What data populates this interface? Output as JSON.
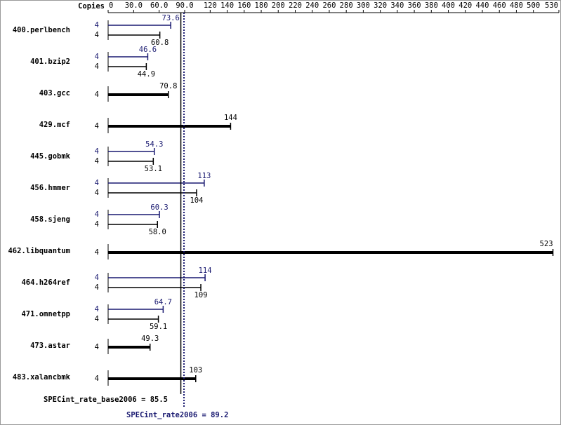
{
  "chart_data": {
    "type": "bar",
    "orientation": "horizontal",
    "copies_label": "Copies",
    "categories": [
      "400.perlbench",
      "401.bzip2",
      "403.gcc",
      "429.mcf",
      "445.gobmk",
      "456.hmmer",
      "458.sjeng",
      "462.libquantum",
      "464.h264ref",
      "471.omnetpp",
      "473.astar",
      "483.xalancbmk"
    ],
    "series": [
      {
        "color": "#191970",
        "values": [
          73.6,
          46.6,
          null,
          null,
          54.3,
          113,
          60.3,
          null,
          114,
          64.7,
          null,
          null
        ],
        "value_labels": [
          "73.6",
          "46.6",
          null,
          null,
          "54.3",
          "113",
          "60.3",
          null,
          "114",
          "64.7",
          null,
          null
        ],
        "copies": [
          4,
          4,
          null,
          null,
          4,
          4,
          4,
          null,
          4,
          4,
          null,
          null
        ]
      },
      {
        "color": "#000000",
        "values": [
          60.8,
          44.9,
          70.8,
          144,
          53.1,
          104,
          58.0,
          523,
          109,
          59.1,
          49.3,
          103
        ],
        "value_labels": [
          "60.8",
          "44.9",
          "70.8",
          "144",
          "53.1",
          "104",
          "58.0",
          "523",
          "109",
          "59.1",
          "49.3",
          "103"
        ],
        "copies": [
          4,
          4,
          4,
          4,
          4,
          4,
          4,
          4,
          4,
          4,
          4,
          4
        ]
      }
    ],
    "xlim": [
      0,
      530
    ],
    "xticks": [
      0,
      {
        "value": 30,
        "label": "30.0"
      },
      {
        "value": 60,
        "label": "60.0"
      },
      {
        "value": 90,
        "label": "90.0"
      },
      120,
      140,
      160,
      180,
      200,
      220,
      240,
      260,
      280,
      300,
      320,
      340,
      360,
      380,
      400,
      420,
      440,
      460,
      480,
      500,
      530
    ],
    "reference_lines": [
      {
        "label": "SPECint_rate_base2006 = 85.5",
        "value": 85.5,
        "color": "#000000",
        "style": "solid"
      },
      {
        "label": "SPECint_rate2006 = 89.2",
        "value": 89.2,
        "color": "#191970",
        "style": "dotted"
      }
    ]
  }
}
